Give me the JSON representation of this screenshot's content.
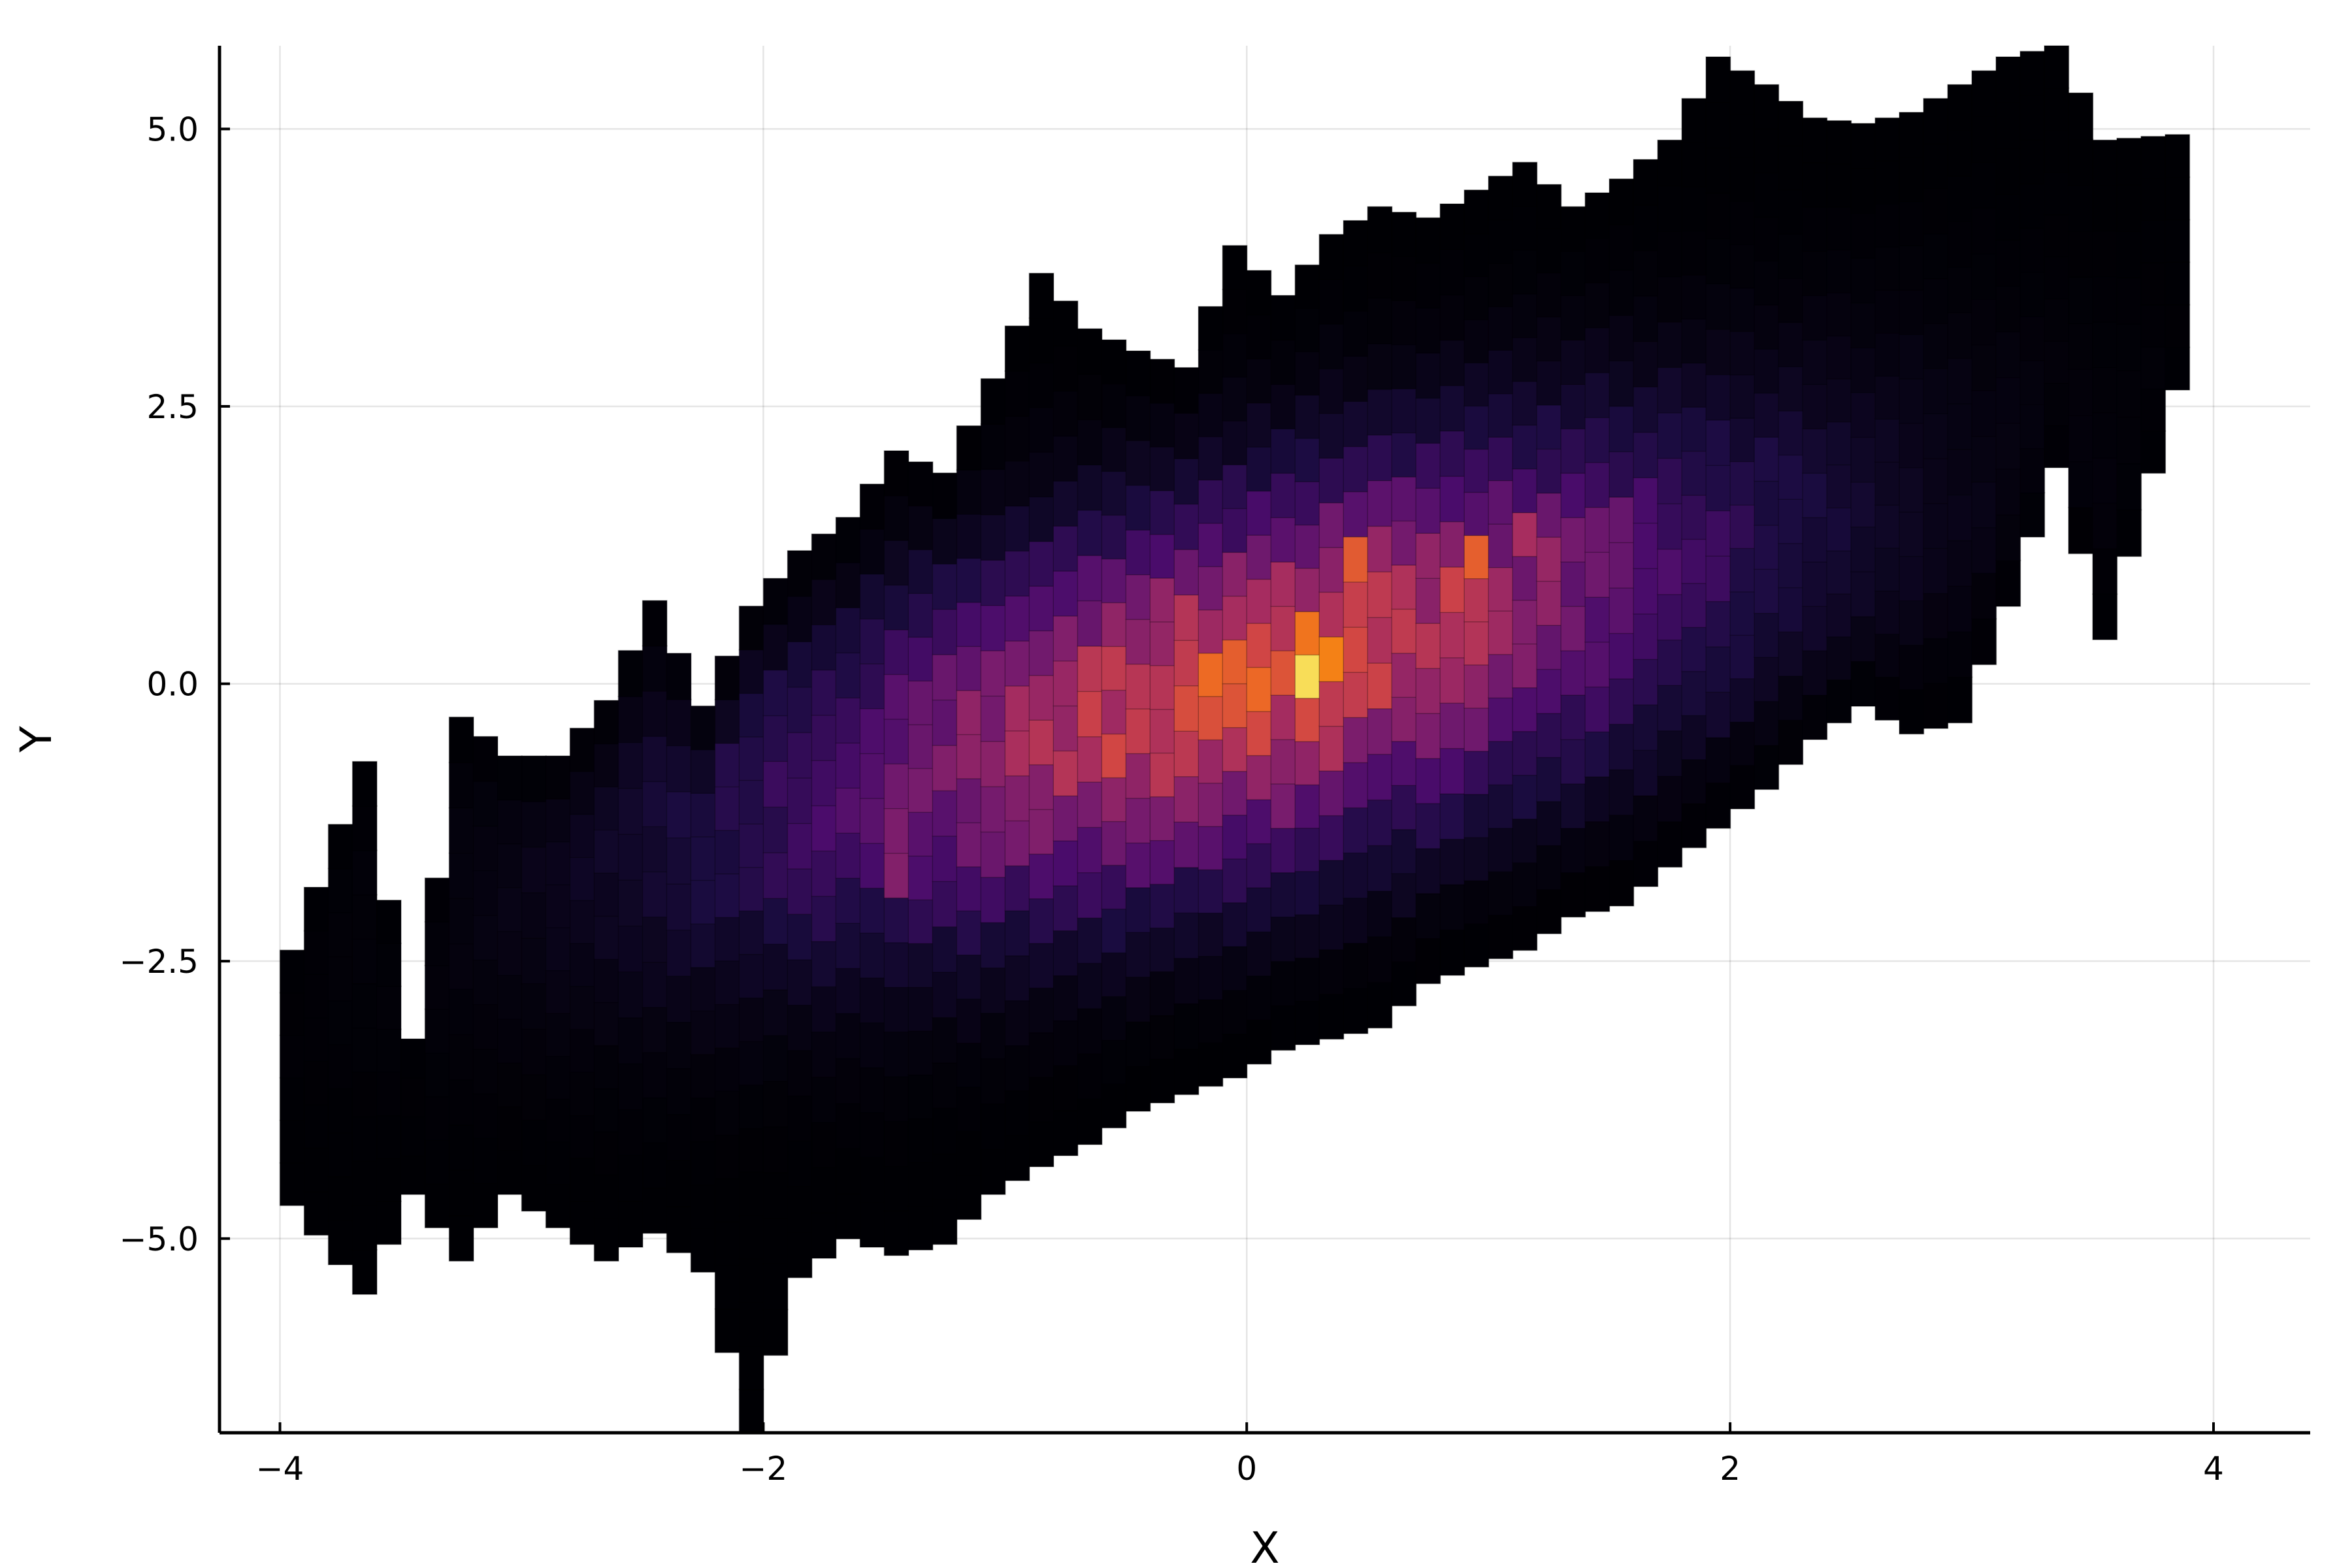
{
  "chart_data": {
    "type": "heatmap",
    "subtype": "2d-histogram",
    "title": "",
    "xlabel": "X",
    "ylabel": "Y",
    "xlim": [
      -4.25,
      4.4
    ],
    "ylim": [
      -6.75,
      5.75
    ],
    "xticks": [
      -4,
      -2,
      0,
      2,
      4
    ],
    "xtick_labels": [
      "−4",
      "−2",
      "0",
      "2",
      "4"
    ],
    "yticks": [
      -5.0,
      -2.5,
      0.0,
      2.5,
      5.0
    ],
    "ytick_labels": [
      "−5.0",
      "−2.5",
      "0.0",
      "2.5",
      "5.0"
    ],
    "grid": true,
    "legend": "none",
    "colormap": "inferno",
    "colormap_stops": [
      "#000004",
      "#1b0c41",
      "#4a0c6b",
      "#781c6d",
      "#a52c60",
      "#cf4446",
      "#ed6925",
      "#fb9b06",
      "#f7d13d",
      "#fcffa4"
    ],
    "bin_width": 0.1,
    "columns": [
      {
        "x": -3.95,
        "bottom": -4.7,
        "top": -2.4
      },
      {
        "x": -3.65,
        "bottom": -5.5,
        "top": -0.7
      },
      {
        "x": -3.45,
        "bottom": -4.6,
        "top": -3.2
      },
      {
        "x": -3.25,
        "bottom": -5.2,
        "top": -0.3
      },
      {
        "x": -3.05,
        "bottom": -4.6,
        "top": -0.65
      },
      {
        "x": -2.85,
        "bottom": -4.9,
        "top": -0.65
      },
      {
        "x": -2.65,
        "bottom": -5.2,
        "top": -0.15
      },
      {
        "x": -2.45,
        "bottom": -4.95,
        "top": 0.75
      },
      {
        "x": -2.25,
        "bottom": -5.3,
        "top": -0.2
      },
      {
        "x": -2.05,
        "bottom": -6.75,
        "top": 0.7
      },
      {
        "x": -1.85,
        "bottom": -5.35,
        "top": 1.2
      },
      {
        "x": -1.65,
        "bottom": -5.0,
        "top": 1.5
      },
      {
        "x": -1.45,
        "bottom": -5.15,
        "top": 2.1
      },
      {
        "x": -1.25,
        "bottom": -5.05,
        "top": 1.9
      },
      {
        "x": -1.05,
        "bottom": -4.6,
        "top": 2.75
      },
      {
        "x": -0.85,
        "bottom": -4.35,
        "top": 3.7
      },
      {
        "x": -0.65,
        "bottom": -4.15,
        "top": 3.2
      },
      {
        "x": -0.45,
        "bottom": -3.85,
        "top": 3.0
      },
      {
        "x": -0.25,
        "bottom": -3.7,
        "top": 2.85
      },
      {
        "x": -0.05,
        "bottom": -3.55,
        "top": 3.95
      },
      {
        "x": 0.15,
        "bottom": -3.3,
        "top": 3.5
      },
      {
        "x": 0.35,
        "bottom": -3.2,
        "top": 4.05
      },
      {
        "x": 0.55,
        "bottom": -3.1,
        "top": 4.3
      },
      {
        "x": 0.75,
        "bottom": -2.7,
        "top": 4.2
      },
      {
        "x": 0.95,
        "bottom": -2.55,
        "top": 4.45
      },
      {
        "x": 1.15,
        "bottom": -2.4,
        "top": 4.7
      },
      {
        "x": 1.35,
        "bottom": -2.1,
        "top": 4.3
      },
      {
        "x": 1.55,
        "bottom": -2.0,
        "top": 4.55
      },
      {
        "x": 1.75,
        "bottom": -1.65,
        "top": 4.9
      },
      {
        "x": 1.95,
        "bottom": -1.3,
        "top": 5.65
      },
      {
        "x": 2.15,
        "bottom": -0.95,
        "top": 5.4
      },
      {
        "x": 2.35,
        "bottom": -0.5,
        "top": 5.1
      },
      {
        "x": 2.55,
        "bottom": -0.2,
        "top": 5.05
      },
      {
        "x": 2.75,
        "bottom": -0.45,
        "top": 5.15
      },
      {
        "x": 2.95,
        "bottom": -0.35,
        "top": 5.4
      },
      {
        "x": 3.15,
        "bottom": 0.7,
        "top": 5.65
      },
      {
        "x": 3.35,
        "bottom": 1.95,
        "top": 5.75
      },
      {
        "x": 3.55,
        "bottom": 0.4,
        "top": 4.9
      },
      {
        "x": 3.85,
        "bottom": 2.65,
        "top": 4.95
      }
    ],
    "hotspots": [
      {
        "x": 0.3,
        "y": 0.2,
        "level": 1.0
      },
      {
        "x": 0.08,
        "y": -0.05,
        "level": 0.82
      },
      {
        "x": -0.12,
        "y": 0.2,
        "level": 0.72
      },
      {
        "x": 0.9,
        "y": 1.0,
        "level": 0.7
      },
      {
        "x": 0.1,
        "y": 0.55,
        "level": 0.6
      },
      {
        "x": 0.45,
        "y": 1.0,
        "level": 0.58
      },
      {
        "x": -0.5,
        "y": -0.6,
        "level": 0.55
      },
      {
        "x": 1.2,
        "y": 1.2,
        "level": 0.5
      },
      {
        "x": -0.8,
        "y": -0.1,
        "level": 0.48
      },
      {
        "x": 0.3,
        "y": -0.8,
        "level": 0.45
      },
      {
        "x": -1.45,
        "y": -1.5,
        "level": 0.42
      },
      {
        "x": 1.5,
        "y": 1.4,
        "level": 0.4
      },
      {
        "x": -1.1,
        "y": -0.6,
        "level": 0.42
      },
      {
        "x": 0.65,
        "y": 0.0,
        "level": 0.4
      }
    ]
  }
}
